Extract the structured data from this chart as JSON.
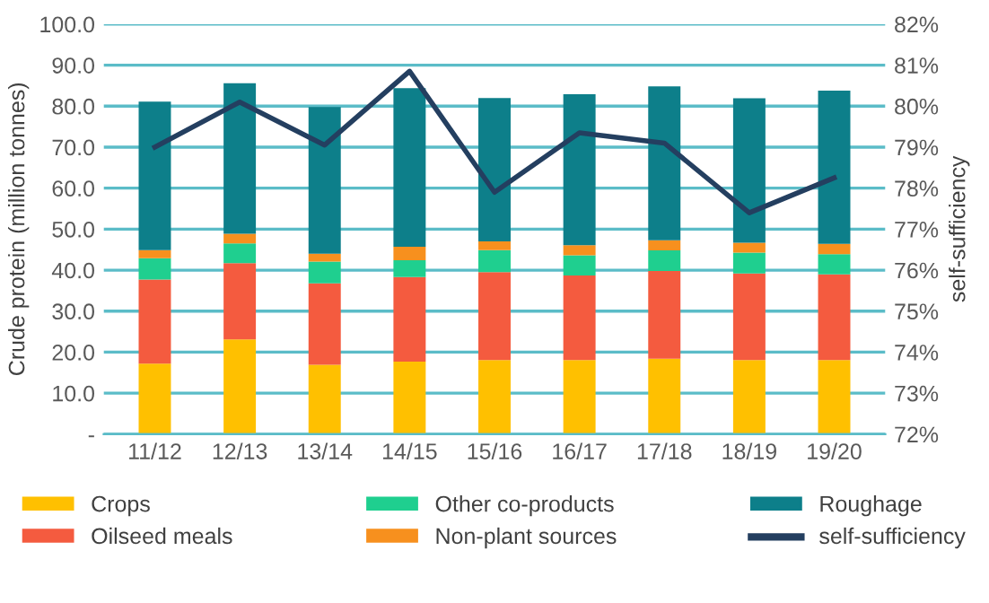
{
  "chart_data": {
    "type": "bar",
    "stacked": true,
    "ylabel": "Crude protein (million tonnes)",
    "y2label": "self-sufficiency",
    "categories": [
      "11/12",
      "12/13",
      "13/14",
      "14/15",
      "15/16",
      "16/17",
      "17/18",
      "18/19",
      "19/20"
    ],
    "series": [
      {
        "name": "Crops",
        "color": "#ffc000",
        "values": [
          17.2,
          23.1,
          16.9,
          17.7,
          18.1,
          18.1,
          18.4,
          18.1,
          18.1
        ]
      },
      {
        "name": "Oilseed meals",
        "color": "#f45b3f",
        "values": [
          20.5,
          18.6,
          19.9,
          20.6,
          21.4,
          20.6,
          21.4,
          21.1,
          20.9
        ]
      },
      {
        "name": "Other co-products",
        "color": "#1fcf8f",
        "values": [
          5.2,
          4.8,
          5.3,
          4.1,
          5.4,
          4.9,
          5.0,
          5.1,
          4.9
        ]
      },
      {
        "name": "Non-plant sources",
        "color": "#f7901e",
        "values": [
          2.0,
          2.4,
          1.9,
          3.3,
          2.1,
          2.5,
          2.5,
          2.4,
          2.5
        ]
      },
      {
        "name": "Roughage",
        "color": "#0d7f8a",
        "values": [
          36.2,
          36.7,
          35.8,
          38.7,
          35.0,
          36.8,
          37.5,
          35.2,
          37.4
        ]
      },
      {
        "name": "self-sufficiency",
        "color": "#243f60",
        "type": "line",
        "axis": "y2",
        "values": [
          79.0,
          80.1,
          79.05,
          80.85,
          77.9,
          79.35,
          79.1,
          77.4,
          78.25
        ]
      }
    ],
    "ylim": [
      0,
      100
    ],
    "yticks": [
      {
        "value": 0,
        "label": "-"
      },
      {
        "value": 10,
        "label": "10.0"
      },
      {
        "value": 20,
        "label": "20.0"
      },
      {
        "value": 30,
        "label": "30.0"
      },
      {
        "value": 40,
        "label": "40.0"
      },
      {
        "value": 50,
        "label": "50.0"
      },
      {
        "value": 60,
        "label": "60.0"
      },
      {
        "value": 70,
        "label": "70.0"
      },
      {
        "value": 80,
        "label": "80.0"
      },
      {
        "value": 90,
        "label": "90.0"
      },
      {
        "value": 100,
        "label": "100.0"
      }
    ],
    "y2lim": [
      72,
      82
    ],
    "y2ticks": [
      {
        "value": 72,
        "label": "72%"
      },
      {
        "value": 73,
        "label": "73%"
      },
      {
        "value": 74,
        "label": "74%"
      },
      {
        "value": 75,
        "label": "75%"
      },
      {
        "value": 76,
        "label": "76%"
      },
      {
        "value": 77,
        "label": "77%"
      },
      {
        "value": 78,
        "label": "78%"
      },
      {
        "value": 79,
        "label": "79%"
      },
      {
        "value": 80,
        "label": "80%"
      },
      {
        "value": 81,
        "label": "81%"
      },
      {
        "value": 82,
        "label": "82%"
      }
    ],
    "grid": "y",
    "legend": "bottom",
    "marker": "none",
    "line_style": "solid"
  }
}
